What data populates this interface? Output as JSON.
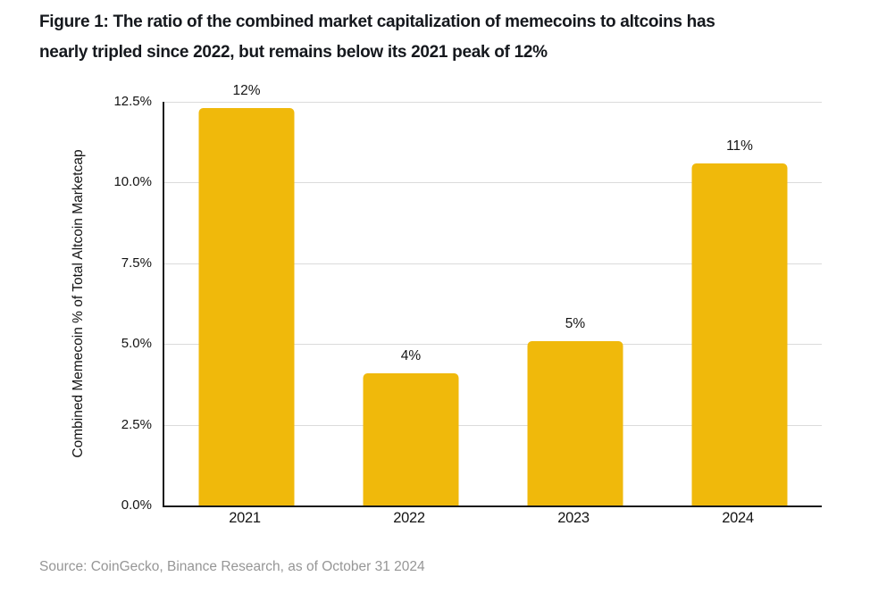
{
  "figure": {
    "title_lines": [
      "Figure 1: The ratio of the combined market capitalization of memecoins to altcoins has",
      "nearly tripled since 2022, but remains below its 2021 peak of 12%"
    ]
  },
  "source": "Source: CoinGecko, Binance Research, as of October 31 2024",
  "chart_data": {
    "type": "bar",
    "categories": [
      "2021",
      "2022",
      "2023",
      "2024"
    ],
    "values": [
      12.3,
      4.1,
      5.1,
      10.6
    ],
    "bar_labels": [
      "12%",
      "4%",
      "5%",
      "11%"
    ],
    "title": "Figure 1: The ratio of the combined market capitalization of memecoins to altcoins has nearly tripled since 2022, but remains below its 2021 peak of 12%",
    "xlabel": "",
    "ylabel": "Combined Memecoin % of Total Altcoin Marketcap",
    "yticks": [
      "0.0%",
      "2.5%",
      "5.0%",
      "7.5%",
      "10.0%",
      "12.5%"
    ],
    "ytick_values": [
      0,
      2.5,
      5,
      7.5,
      10,
      12.5
    ],
    "ylim": [
      0,
      12.5
    ],
    "grid": "horizontal",
    "legend": "none",
    "bar_color": "#F0B90B",
    "grid_color": "#DBDBDB",
    "axis_color": "#1A1A1A",
    "label_color": "#141414",
    "source_color": "#969696"
  }
}
